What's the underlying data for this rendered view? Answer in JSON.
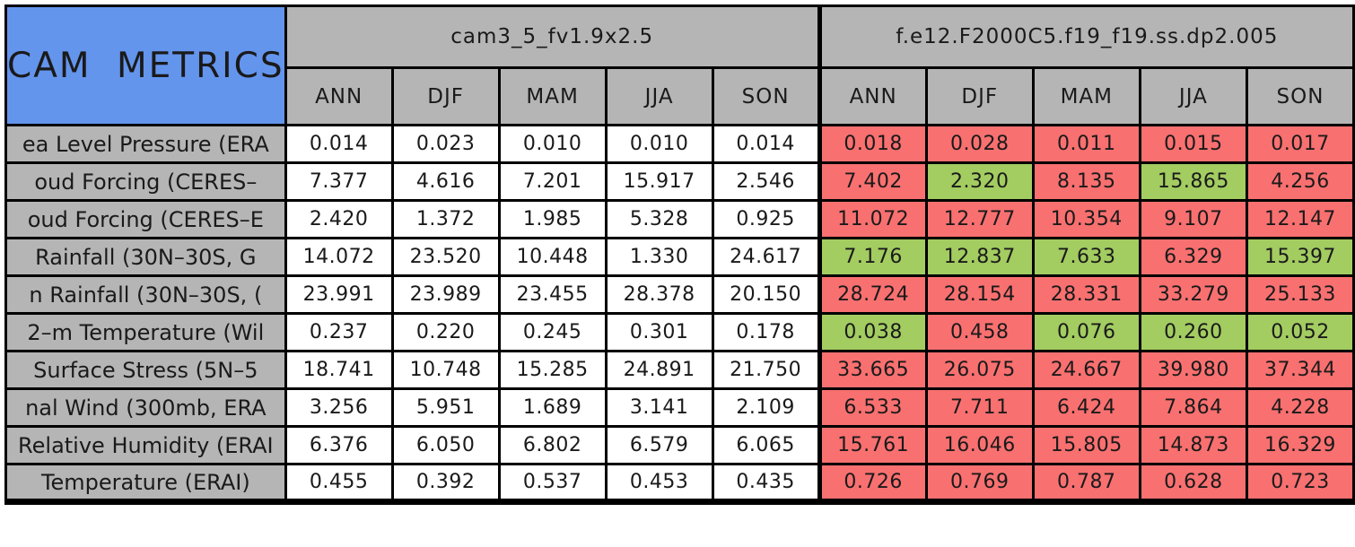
{
  "colors": {
    "header_blue": "#6495ED",
    "cell_gray": "#B5B5B5",
    "worse_red": "#F97070",
    "better_green": "#A3CC61",
    "border_black": "#000000",
    "text_dark": "#1a1a1a"
  },
  "chart_data": {
    "type": "table",
    "title": "CAM METRICS",
    "column_groups": [
      "cam3_5_fv1.9x2.5",
      "f.e12.F2000C5.f19_f19.ss.dp2.005"
    ],
    "seasons": [
      "ANN",
      "DJF",
      "MAM",
      "JJA",
      "SON"
    ],
    "rows": [
      {
        "label": "ea Level Pressure (ERA",
        "baseline": [
          "0.014",
          "0.023",
          "0.010",
          "0.010",
          "0.014"
        ],
        "test": [
          "0.018",
          "0.028",
          "0.011",
          "0.015",
          "0.017"
        ],
        "test_status": [
          "worse",
          "worse",
          "worse",
          "worse",
          "worse"
        ]
      },
      {
        "label": "oud Forcing (CERES–",
        "baseline": [
          "7.377",
          "4.616",
          "7.201",
          "15.917",
          "2.546"
        ],
        "test": [
          "7.402",
          "2.320",
          "8.135",
          "15.865",
          "4.256"
        ],
        "test_status": [
          "worse",
          "better",
          "worse",
          "better",
          "worse"
        ]
      },
      {
        "label": "oud Forcing (CERES–E",
        "baseline": [
          "2.420",
          "1.372",
          "1.985",
          "5.328",
          "0.925"
        ],
        "test": [
          "11.072",
          "12.777",
          "10.354",
          "9.107",
          "12.147"
        ],
        "test_status": [
          "worse",
          "worse",
          "worse",
          "worse",
          "worse"
        ]
      },
      {
        "label": "Rainfall (30N–30S, G",
        "baseline": [
          "14.072",
          "23.520",
          "10.448",
          "1.330",
          "24.617"
        ],
        "test": [
          "7.176",
          "12.837",
          "7.633",
          "6.329",
          "15.397"
        ],
        "test_status": [
          "better",
          "better",
          "better",
          "worse",
          "better"
        ]
      },
      {
        "label": "n Rainfall (30N–30S, (",
        "baseline": [
          "23.991",
          "23.989",
          "23.455",
          "28.378",
          "20.150"
        ],
        "test": [
          "28.724",
          "28.154",
          "28.331",
          "33.279",
          "25.133"
        ],
        "test_status": [
          "worse",
          "worse",
          "worse",
          "worse",
          "worse"
        ]
      },
      {
        "label": "2–m Temperature (Wil",
        "baseline": [
          "0.237",
          "0.220",
          "0.245",
          "0.301",
          "0.178"
        ],
        "test": [
          "0.038",
          "0.458",
          "0.076",
          "0.260",
          "0.052"
        ],
        "test_status": [
          "better",
          "worse",
          "better",
          "better",
          "better"
        ]
      },
      {
        "label": "Surface Stress (5N–5",
        "baseline": [
          "18.741",
          "10.748",
          "15.285",
          "24.891",
          "21.750"
        ],
        "test": [
          "33.665",
          "26.075",
          "24.667",
          "39.980",
          "37.344"
        ],
        "test_status": [
          "worse",
          "worse",
          "worse",
          "worse",
          "worse"
        ]
      },
      {
        "label": "nal Wind (300mb, ERA",
        "baseline": [
          "3.256",
          "5.951",
          "1.689",
          "3.141",
          "2.109"
        ],
        "test": [
          "6.533",
          "7.711",
          "6.424",
          "7.864",
          "4.228"
        ],
        "test_status": [
          "worse",
          "worse",
          "worse",
          "worse",
          "worse"
        ]
      },
      {
        "label": "Relative Humidity (ERAI",
        "baseline": [
          "6.376",
          "6.050",
          "6.802",
          "6.579",
          "6.065"
        ],
        "test": [
          "15.761",
          "16.046",
          "15.805",
          "14.873",
          "16.329"
        ],
        "test_status": [
          "worse",
          "worse",
          "worse",
          "worse",
          "worse"
        ]
      },
      {
        "label": "Temperature (ERAI)",
        "baseline": [
          "0.455",
          "0.392",
          "0.537",
          "0.453",
          "0.435"
        ],
        "test": [
          "0.726",
          "0.769",
          "0.787",
          "0.628",
          "0.723"
        ],
        "test_status": [
          "worse",
          "worse",
          "worse",
          "worse",
          "worse"
        ]
      }
    ]
  }
}
